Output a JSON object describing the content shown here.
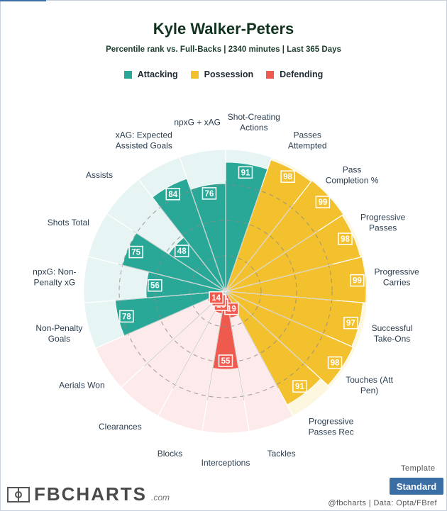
{
  "header": {
    "title": "Kyle Walker-Peters",
    "subtitle": "Percentile rank vs. Full-Backs | 2340 minutes | Last 365 Days"
  },
  "legend": [
    {
      "label": "Attacking",
      "color": "#2aa897"
    },
    {
      "label": "Possession",
      "color": "#f3c12e"
    },
    {
      "label": "Defending",
      "color": "#ef5a4f"
    }
  ],
  "footer": {
    "template_label": "Template",
    "template_value": "Standard",
    "logo_text": "FBCHARTS",
    "logo_suffix": ".com",
    "credits": "@fbcharts | Data: Opta/FBref"
  },
  "chart_data": {
    "type": "radar",
    "title": "Kyle Walker-Peters",
    "subtitle": "Percentile rank vs. Full-Backs | 2340 minutes | Last 365 Days",
    "scale_max": 100,
    "categories": [
      {
        "label": "Shot-Creating Actions",
        "value": 91,
        "group": "Attacking"
      },
      {
        "label": "Passes Attempted",
        "value": 98,
        "group": "Possession"
      },
      {
        "label": "Pass Completion %",
        "value": 99,
        "group": "Possession"
      },
      {
        "label": "Progressive Passes",
        "value": 98,
        "group": "Possession"
      },
      {
        "label": "Progressive Carries",
        "value": 99,
        "group": "Possession"
      },
      {
        "label": "Successful Take-Ons",
        "value": 97,
        "group": "Possession"
      },
      {
        "label": "Touches (Att Pen)",
        "value": 98,
        "group": "Possession"
      },
      {
        "label": "Progressive Passes Rec",
        "value": 91,
        "group": "Possession"
      },
      {
        "label": "Tackles",
        "value": 19,
        "group": "Defending"
      },
      {
        "label": "Interceptions",
        "value": 55,
        "group": "Defending"
      },
      {
        "label": "Blocks",
        "value": 16,
        "group": "Defending"
      },
      {
        "label": "Clearances",
        "value": 11,
        "group": "Defending"
      },
      {
        "label": "Aerials Won",
        "value": 14,
        "group": "Defending"
      },
      {
        "label": "Non-Penalty Goals",
        "value": 78,
        "group": "Attacking"
      },
      {
        "label": "npxG: Non-Penalty xG",
        "value": 56,
        "group": "Attacking"
      },
      {
        "label": "Shots Total",
        "value": 75,
        "group": "Attacking"
      },
      {
        "label": "Assists",
        "value": 48,
        "group": "Attacking"
      },
      {
        "label": "xAG: Expected Assisted Goals",
        "value": 84,
        "group": "Attacking"
      },
      {
        "label": "npxG + xAG",
        "value": 76,
        "group": "Attacking"
      }
    ],
    "label_lines": [
      [
        "Shot-Creating",
        "Actions"
      ],
      [
        "Passes",
        "Attempted"
      ],
      [
        "Pass",
        "Completion %"
      ],
      [
        "Progressive",
        "Passes"
      ],
      [
        "Progressive",
        "Carries"
      ],
      [
        "Successful",
        "Take-Ons"
      ],
      [
        "Touches (Att",
        "Pen)"
      ],
      [
        "Progressive",
        "Passes Rec"
      ],
      [
        "Tackles"
      ],
      [
        "Interceptions"
      ],
      [
        "Blocks"
      ],
      [
        "Clearances"
      ],
      [
        "Aerials Won"
      ],
      [
        "Non-Penalty",
        "Goals"
      ],
      [
        "npxG: Non-",
        "Penalty xG"
      ],
      [
        "Shots Total"
      ],
      [
        "Assists"
      ],
      [
        "xAG: Expected",
        "Assisted Goals"
      ],
      [
        "npxG + xAG"
      ]
    ],
    "group_colors": {
      "Attacking": {
        "fill": "#2aa897",
        "bg": "#e6f5f3"
      },
      "Possession": {
        "fill": "#f3c12e",
        "bg": "#fdf7e0"
      },
      "Defending": {
        "fill": "#ef5a4f",
        "bg": "#fdeaea"
      }
    },
    "grid": true
  }
}
